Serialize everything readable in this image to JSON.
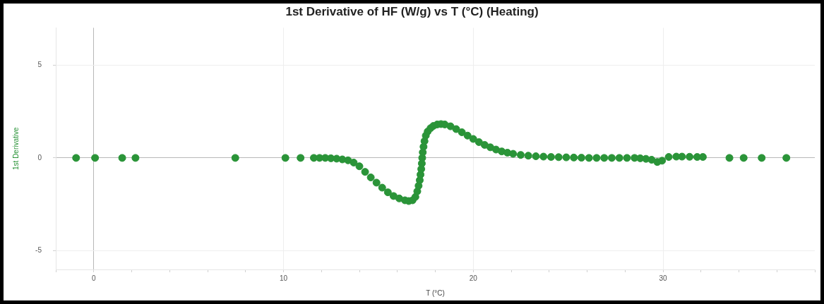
{
  "chart_data": {
    "type": "scatter",
    "title": "1st Derivative of HF (W/g) vs T (°C) (Heating)",
    "xlabel": "T (°C)",
    "ylabel": "1st Derivative",
    "xlim": [
      -2,
      38
    ],
    "xticks": [
      {
        "value": -2,
        "label": null
      },
      0,
      {
        "value": 2,
        "label": null
      },
      {
        "value": 4,
        "label": null
      },
      {
        "value": 6,
        "label": null
      },
      {
        "value": 8,
        "label": null
      },
      10,
      {
        "value": 12,
        "label": null
      },
      {
        "value": 14,
        "label": null
      },
      {
        "value": 16,
        "label": null
      },
      {
        "value": 18,
        "label": null
      },
      20,
      {
        "value": 22,
        "label": null
      },
      {
        "value": 24,
        "label": null
      },
      {
        "value": 26,
        "label": null
      },
      {
        "value": 28,
        "label": null
      },
      30,
      {
        "value": 32,
        "label": null
      },
      {
        "value": 34,
        "label": null
      },
      {
        "value": 36,
        "label": null
      },
      {
        "value": 38,
        "label": null
      }
    ],
    "ylim": [
      -6,
      7
    ],
    "yticks": [
      -5,
      0,
      5
    ],
    "grid": true,
    "marker": "circle",
    "series": [
      {
        "color": "#2a9438",
        "x": [
          -0.93,
          0.07,
          1.5,
          2.2,
          7.46,
          10.1,
          10.9,
          11.6,
          11.9,
          12.2,
          12.5,
          12.8,
          13.1,
          13.4,
          13.7,
          14.0,
          14.3,
          14.6,
          14.9,
          15.2,
          15.5,
          15.8,
          16.1,
          16.4,
          16.6,
          16.8,
          16.95,
          17.05,
          17.12,
          17.18,
          17.22,
          17.26,
          17.29,
          17.31,
          17.34,
          17.38,
          17.43,
          17.5,
          17.6,
          17.75,
          17.9,
          18.1,
          18.3,
          18.5,
          18.8,
          19.1,
          19.4,
          19.7,
          20.0,
          20.3,
          20.6,
          20.9,
          21.2,
          21.5,
          21.8,
          22.1,
          22.5,
          22.9,
          23.3,
          23.7,
          24.1,
          24.5,
          24.9,
          25.3,
          25.7,
          26.1,
          26.5,
          26.9,
          27.3,
          27.7,
          28.1,
          28.5,
          28.8,
          29.1,
          29.4,
          29.7,
          29.95,
          30.3,
          30.7,
          31.0,
          31.4,
          31.8,
          32.1,
          33.5,
          34.25,
          35.2,
          36.5
        ],
        "values": [
          0,
          0,
          0,
          0,
          0,
          0,
          0,
          0,
          0,
          0,
          -0.02,
          -0.04,
          -0.08,
          -0.13,
          -0.25,
          -0.45,
          -0.75,
          -1.05,
          -1.33,
          -1.6,
          -1.85,
          -2.05,
          -2.18,
          -2.28,
          -2.32,
          -2.28,
          -2.1,
          -1.8,
          -1.5,
          -1.2,
          -0.9,
          -0.6,
          -0.3,
          0,
          0.3,
          0.6,
          0.9,
          1.2,
          1.42,
          1.6,
          1.72,
          1.8,
          1.82,
          1.8,
          1.7,
          1.55,
          1.38,
          1.2,
          1.02,
          0.85,
          0.7,
          0.57,
          0.45,
          0.35,
          0.28,
          0.22,
          0.16,
          0.12,
          0.09,
          0.07,
          0.05,
          0.04,
          0.03,
          0.02,
          0.01,
          0,
          0,
          0,
          0,
          0,
          0,
          0,
          -0.02,
          -0.05,
          -0.1,
          -0.22,
          -0.15,
          0.05,
          0.07,
          0.07,
          0.06,
          0.05,
          0.05,
          0,
          0,
          0,
          0
        ]
      }
    ]
  }
}
